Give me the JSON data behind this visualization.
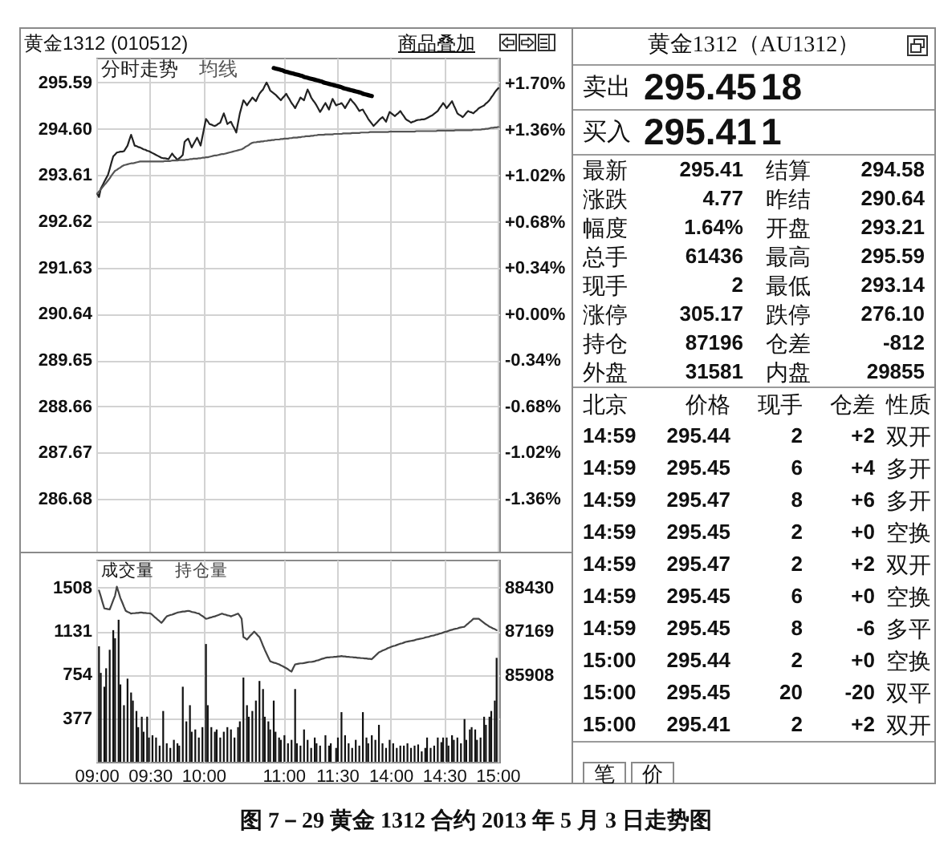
{
  "chart_data": [
    {
      "type": "line",
      "title": "黄金1312 (010512)",
      "annotations": [
        "商品叠加",
        "图 7－29 黄金 1312 合约 2013 年 5 月 3 日走势图"
      ],
      "legend": "top left",
      "grid": true,
      "tick_labels": "y",
      "categories": [
        null,
        null,
        null,
        null,
        null,
        null,
        null,
        null,
        null,
        null,
        null,
        null,
        null,
        null,
        null,
        null,
        null,
        null,
        null,
        null,
        null,
        null,
        null,
        null,
        null,
        null,
        null,
        null,
        null,
        null,
        null,
        null,
        null,
        null,
        null,
        null,
        null,
        null,
        null,
        null,
        null,
        null,
        null,
        null,
        null,
        null,
        null,
        null,
        null,
        null,
        null,
        null,
        null,
        null,
        null,
        null,
        null,
        null,
        null,
        null,
        null,
        null,
        null,
        null,
        null,
        null,
        null,
        null,
        null,
        null,
        null,
        null,
        null,
        null,
        null,
        null,
        null,
        null,
        null,
        null,
        null,
        null,
        null,
        null,
        null,
        null,
        null,
        null,
        null,
        null,
        null,
        null,
        null,
        null,
        null,
        null,
        null,
        null,
        null,
        null,
        null,
        null,
        null,
        null,
        null,
        null,
        null,
        null,
        null,
        null,
        null,
        null,
        null,
        null,
        null,
        null,
        null,
        null,
        null,
        null,
        null,
        null,
        null,
        null,
        null,
        null,
        null,
        null,
        null,
        null,
        null,
        null,
        null,
        null,
        null,
        null,
        null,
        null,
        null,
        null,
        null,
        null,
        null,
        null,
        null,
        null,
        null,
        null,
        null,
        null,
        null,
        null,
        null,
        null,
        null,
        null,
        null,
        null,
        null,
        null,
        null,
        null,
        null,
        null,
        null,
        null,
        null,
        null,
        null,
        null,
        null,
        null,
        null,
        null,
        null,
        null,
        null,
        null,
        null,
        null,
        null,
        null,
        null,
        null,
        null,
        null,
        null,
        null,
        null,
        null,
        null,
        null,
        null,
        null,
        null,
        null,
        null,
        null,
        null,
        null,
        null,
        null,
        null,
        null,
        null,
        null,
        null,
        null,
        null,
        null,
        null,
        null,
        null,
        null,
        null,
        null,
        null,
        null,
        null,
        null,
        null,
        null,
        null,
        null,
        null,
        null
      ],
      "ylim": [
        285.55,
        296.12
      ],
      "yticks": [
        295.59,
        {
          "value": 294.6,
          "label": "294.60"
        },
        293.61,
        292.62,
        291.63,
        290.64,
        289.65,
        288.66,
        287.67,
        286.68
      ],
      "y2lim": [
        -1.75,
        1.89
      ],
      "y2ticks": [
        {
          "value": 1.7,
          "label": "+1.70%"
        },
        {
          "value": 1.36,
          "label": "+1.36%"
        },
        {
          "value": 1.02,
          "label": "+1.02%"
        },
        {
          "value": 0.68,
          "label": "+0.68%"
        },
        {
          "value": 0.34,
          "label": "+0.34%"
        },
        {
          "value": 0,
          "label": "+0.00%"
        },
        {
          "value": -0.34,
          "label": "-0.34%"
        },
        {
          "value": -0.68,
          "label": "-0.68%"
        },
        {
          "value": -1.02,
          "label": "-1.02%"
        },
        {
          "value": -1.36,
          "label": "-1.36%"
        }
      ],
      "series": [
        {
          "name": "分时走势",
          "color": "#222222",
          "values": [
            293.21,
            293.14,
            293.32,
            293.39,
            293.47,
            293.54,
            293.61,
            293.74,
            293.88,
            294.01,
            294.05,
            294.09,
            294.1,
            294.11,
            294.11,
            294.12,
            294.18,
            294.24,
            294.36,
            294.47,
            294.36,
            294.24,
            294.23,
            294.21,
            294.2,
            294.18,
            294.16,
            294.15,
            294.13,
            294.12,
            294.1,
            294.08,
            294.06,
            294.04,
            294.02,
            294.0,
            293.98,
            293.97,
            293.97,
            293.96,
            293.95,
            294.01,
            294.07,
            294.02,
            293.98,
            293.93,
            293.97,
            294.0,
            294.04,
            294.32,
            294.36,
            294.39,
            294.3,
            294.2,
            294.27,
            294.34,
            294.41,
            294.33,
            294.24,
            294.43,
            294.62,
            294.81,
            294.76,
            294.7,
            294.69,
            294.67,
            294.66,
            294.68,
            294.71,
            294.73,
            294.83,
            294.93,
            294.82,
            294.7,
            294.73,
            294.75,
            294.67,
            294.6,
            294.52,
            294.73,
            294.93,
            295.07,
            295.21,
            295.16,
            295.1,
            295.16,
            295.21,
            295.27,
            295.23,
            295.19,
            295.27,
            295.35,
            295.4,
            295.44,
            295.52,
            295.59,
            295.51,
            295.42,
            295.39,
            295.36,
            295.33,
            295.29,
            295.25,
            295.21,
            295.26,
            295.3,
            295.35,
            295.28,
            295.22,
            295.15,
            295.1,
            295.04,
            295.12,
            295.19,
            295.27,
            295.24,
            295.21,
            295.33,
            295.44,
            295.36,
            295.27,
            295.21,
            295.16,
            295.1,
            295.03,
            294.96,
            295.02,
            295.09,
            295.15,
            295.08,
            295.01,
            295.13,
            295.24,
            295.17,
            295.1,
            295.12,
            295.13,
            295.15,
            295.1,
            295.04,
            295.11,
            295.17,
            295.24,
            295.19,
            295.15,
            295.1,
            295.04,
            294.98,
            295.0,
            295.01,
            294.94,
            294.88,
            294.81,
            294.76,
            294.71,
            294.66,
            294.7,
            294.74,
            294.78,
            294.82,
            294.85,
            294.8,
            294.75,
            294.86,
            294.96,
            294.93,
            294.9,
            294.87,
            294.91,
            294.94,
            294.98,
            294.92,
            294.87,
            294.81,
            294.78,
            294.76,
            294.73,
            294.75,
            294.76,
            294.78,
            294.79,
            294.79,
            294.8,
            294.8,
            294.81,
            294.83,
            294.85,
            294.87,
            294.89,
            294.92,
            294.95,
            294.98,
            295.04,
            295.09,
            295.15,
            295.1,
            295.04,
            295.09,
            295.14,
            295.19,
            295.1,
            295.02,
            294.93,
            294.9,
            294.88,
            294.85,
            294.89,
            294.94,
            294.98,
            294.96,
            294.95,
            294.93,
            294.97,
            295.0,
            295.04,
            295.06,
            295.08,
            295.1,
            295.14,
            295.17,
            295.21,
            295.27,
            295.32,
            295.38,
            295.43,
            295.47
          ]
        },
        {
          "name": "均线",
          "color": "#555555",
          "values": [
            293.21,
            293.26,
            293.3,
            293.35,
            293.4,
            293.44,
            293.49,
            293.54,
            293.6,
            293.65,
            293.7,
            293.72,
            293.75,
            293.77,
            293.8,
            293.82,
            293.83,
            293.84,
            293.85,
            293.86,
            293.86,
            293.87,
            293.88,
            293.89,
            293.9,
            293.9,
            293.9,
            293.9,
            293.9,
            293.9,
            293.9,
            293.9,
            293.9,
            293.9,
            293.9,
            293.9,
            293.9,
            293.9,
            293.91,
            293.91,
            293.91,
            293.91,
            293.92,
            293.92,
            293.92,
            293.92,
            293.93,
            293.93,
            293.93,
            293.93,
            293.94,
            293.94,
            293.95,
            293.95,
            293.96,
            293.96,
            293.96,
            293.97,
            293.97,
            293.98,
            293.98,
            293.99,
            293.99,
            294.0,
            294.01,
            294.02,
            294.03,
            294.03,
            294.04,
            294.05,
            294.06,
            294.06,
            294.07,
            294.08,
            294.09,
            294.1,
            294.11,
            294.12,
            294.13,
            294.14,
            294.15,
            294.16,
            294.18,
            294.21,
            294.23,
            294.25,
            294.28,
            294.3,
            294.31,
            294.31,
            294.32,
            294.32,
            294.33,
            294.33,
            294.34,
            294.34,
            294.35,
            294.35,
            294.36,
            294.36,
            294.37,
            294.37,
            294.37,
            294.38,
            294.38,
            294.39,
            294.39,
            294.39,
            294.4,
            294.4,
            294.41,
            294.41,
            294.41,
            294.42,
            294.42,
            294.43,
            294.43,
            294.44,
            294.44,
            294.44,
            294.45,
            294.45,
            294.46,
            294.46,
            294.47,
            294.47,
            294.47,
            294.47,
            294.48,
            294.48,
            294.48,
            294.48,
            294.48,
            294.49,
            294.49,
            294.49,
            294.49,
            294.49,
            294.5,
            294.5,
            294.5,
            294.5,
            294.5,
            294.51,
            294.51,
            294.51,
            294.51,
            294.51,
            294.52,
            294.52,
            294.52,
            294.52,
            294.52,
            294.53,
            294.53,
            294.53,
            294.53,
            294.53,
            294.53,
            294.53,
            294.53,
            294.53,
            294.53,
            294.53,
            294.54,
            294.54,
            294.54,
            294.54,
            294.54,
            294.54,
            294.54,
            294.54,
            294.54,
            294.54,
            294.54,
            294.54,
            294.54,
            294.54,
            294.54,
            294.55,
            294.55,
            294.55,
            294.55,
            294.55,
            294.55,
            294.55,
            294.55,
            294.55,
            294.55,
            294.55,
            294.55,
            294.56,
            294.56,
            294.56,
            294.56,
            294.56,
            294.56,
            294.56,
            294.56,
            294.56,
            294.56,
            294.57,
            294.57,
            294.57,
            294.57,
            294.57,
            294.57,
            294.57,
            294.57,
            294.57,
            294.57,
            294.58,
            294.58,
            294.58,
            294.58,
            294.58,
            294.59,
            294.59,
            294.6,
            294.6,
            294.61,
            294.62,
            294.62,
            294.63,
            294.63,
            294.64
          ]
        },
        {
          "color": "#000000",
          "values": [
            null,
            null,
            null,
            null,
            null,
            null,
            null,
            null,
            null,
            null,
            null,
            null,
            null,
            null,
            null,
            null,
            null,
            null,
            null,
            null,
            null,
            null,
            null,
            null,
            null,
            null,
            null,
            null,
            null,
            null,
            null,
            null,
            null,
            null,
            null,
            null,
            null,
            null,
            null,
            null,
            null,
            null,
            null,
            null,
            null,
            null,
            null,
            null,
            null,
            null,
            null,
            null,
            null,
            null,
            null,
            null,
            null,
            null,
            null,
            null,
            null,
            null,
            null,
            null,
            null,
            null,
            null,
            null,
            null,
            null,
            null,
            null,
            null,
            null,
            null,
            null,
            null,
            null,
            null,
            null,
            null,
            null,
            null,
            null,
            null,
            null,
            null,
            null,
            null,
            null,
            null,
            null,
            null,
            null,
            null,
            null,
            null,
            null,
            null,
            295.9,
            295.89,
            295.88,
            295.87,
            295.86,
            295.85,
            295.83,
            295.82,
            295.81,
            295.8,
            295.79,
            295.78,
            295.77,
            295.76,
            295.75,
            295.74,
            295.73,
            295.71,
            295.7,
            295.69,
            295.68,
            295.67,
            295.66,
            295.65,
            295.64,
            295.63,
            295.62,
            295.61,
            295.59,
            295.58,
            295.57,
            295.56,
            295.55,
            295.54,
            295.53,
            295.52,
            295.51,
            295.5,
            295.49,
            295.47,
            295.46,
            295.45,
            295.44,
            295.43,
            295.42,
            295.41,
            295.4,
            295.39,
            295.38,
            295.37,
            295.35,
            295.34,
            295.33,
            295.32,
            295.31,
            295.3,
            null,
            null,
            null,
            null,
            null,
            null,
            null,
            null,
            null,
            null,
            null,
            null,
            null,
            null,
            null,
            null,
            null,
            null,
            null,
            null,
            null,
            null,
            null,
            null,
            null,
            null,
            null,
            null,
            null,
            null,
            null,
            null,
            null,
            null,
            null,
            null,
            null,
            null,
            null,
            null,
            null,
            null,
            null,
            null,
            null,
            null,
            null,
            null,
            null,
            null,
            null,
            null,
            null,
            null,
            null,
            null,
            null,
            null,
            null,
            null,
            null,
            null,
            null,
            null,
            null,
            null,
            null,
            null,
            null,
            null,
            null
          ]
        }
      ]
    },
    {
      "type": "bar",
      "legend": "top left",
      "grid": true,
      "categories": [
        "09:00",
        null,
        null,
        null,
        null,
        null,
        null,
        null,
        null,
        null,
        null,
        null,
        null,
        null,
        null,
        null,
        null,
        null,
        null,
        null,
        null,
        null,
        null,
        null,
        null,
        null,
        null,
        null,
        null,
        null,
        "09:30",
        null,
        null,
        null,
        null,
        null,
        null,
        null,
        null,
        null,
        null,
        null,
        null,
        null,
        null,
        null,
        null,
        null,
        null,
        null,
        null,
        null,
        null,
        null,
        null,
        null,
        null,
        null,
        null,
        null,
        "10:00",
        null,
        null,
        null,
        null,
        null,
        null,
        null,
        null,
        null,
        null,
        null,
        null,
        null,
        null,
        null,
        null,
        null,
        null,
        null,
        null,
        null,
        null,
        null,
        null,
        null,
        null,
        null,
        null,
        null,
        null,
        null,
        null,
        null,
        null,
        null,
        null,
        null,
        null,
        null,
        null,
        null,
        null,
        null,
        null,
        "11:00",
        null,
        null,
        null,
        null,
        null,
        null,
        null,
        null,
        null,
        null,
        null,
        null,
        null,
        null,
        null,
        null,
        null,
        null,
        null,
        null,
        null,
        null,
        null,
        null,
        null,
        null,
        null,
        null,
        null,
        "11:30",
        null,
        null,
        null,
        null,
        null,
        null,
        null,
        null,
        null,
        null,
        null,
        null,
        null,
        null,
        null,
        null,
        null,
        null,
        null,
        null,
        null,
        null,
        null,
        null,
        null,
        null,
        null,
        null,
        null,
        "14:00",
        null,
        null,
        null,
        null,
        null,
        null,
        null,
        null,
        null,
        null,
        null,
        null,
        null,
        null,
        null,
        null,
        null,
        null,
        null,
        null,
        null,
        null,
        null,
        null,
        null,
        null,
        null,
        null,
        null,
        "14:30",
        null,
        null,
        null,
        null,
        null,
        null,
        null,
        null,
        null,
        null,
        null,
        null,
        null,
        null,
        null,
        null,
        null,
        null,
        null,
        null,
        null,
        null,
        null,
        null,
        null,
        null,
        null,
        null,
        null,
        "15:00"
      ],
      "ylim": [
        0,
        1750
      ],
      "yticks": [
        1508,
        1131,
        754,
        377
      ],
      "y2lim": [
        83390,
        89240
      ],
      "y2ticks": [
        88430,
        87169,
        85908
      ],
      "series": [
        {
          "name": "成交量",
          "color": "#111111",
          "values": [
            null,
            1000,
            770,
            null,
            650,
            810,
            null,
            970,
            null,
            1140,
            1070,
            null,
            1230,
            670,
            null,
            490,
            null,
            720,
            null,
            600,
            530,
            null,
            440,
            300,
            null,
            390,
            260,
            null,
            390,
            210,
            null,
            230,
            null,
            210,
            null,
            140,
            null,
            440,
            null,
            160,
            null,
            120,
            null,
            190,
            null,
            160,
            140,
            null,
            650,
            null,
            350,
            null,
            490,
            260,
            null,
            280,
            null,
            210,
            null,
            300,
            null,
            1020,
            490,
            null,
            300,
            null,
            260,
            280,
            null,
            210,
            null,
            260,
            null,
            300,
            null,
            280,
            null,
            210,
            null,
            300,
            350,
            null,
            730,
            null,
            490,
            390,
            null,
            440,
            null,
            530,
            null,
            700,
            null,
            630,
            390,
            null,
            350,
            280,
            null,
            530,
            260,
            null,
            210,
            190,
            null,
            230,
            null,
            160,
            null,
            190,
            null,
            630,
            160,
            null,
            140,
            null,
            280,
            null,
            190,
            null,
            120,
            null,
            210,
            160,
            null,
            140,
            null,
            null,
            230,
            null,
            140,
            160,
            null,
            null,
            120,
            210,
            null,
            430,
            null,
            230,
            null,
            160,
            null,
            120,
            null,
            190,
            null,
            140,
            null,
            430,
            null,
            210,
            160,
            null,
            230,
            null,
            190,
            null,
            320,
            null,
            160,
            null,
            120,
            null,
            190,
            null,
            160,
            null,
            120,
            null,
            140,
            null,
            140,
            null,
            160,
            null,
            120,
            null,
            140,
            null,
            150,
            null,
            90,
            null,
            120,
            210,
            null,
            120,
            null,
            140,
            null,
            210,
            null,
            170,
            210,
            null,
            210,
            140,
            null,
            230,
            190,
            null,
            210,
            null,
            160,
            null,
            370,
            190,
            null,
            280,
            300,
            null,
            280,
            190,
            null,
            210,
            null,
            390,
            320,
            null,
            390,
            440,
            null,
            530,
            900,
            null
          ]
        },
        {
          "name": "持仓量",
          "type": "line",
          "axis": "y2",
          "color": "#444444",
          "values": [
            null,
            88350,
            88180,
            88000,
            87830,
            87820,
            87810,
            87800,
            87930,
            88070,
            88200,
            88460,
            88300,
            88130,
            88010,
            87880,
            87760,
            87730,
            87710,
            87680,
            87690,
            87690,
            87700,
            87700,
            87710,
            87710,
            87700,
            87700,
            87690,
            87690,
            87680,
            87640,
            87590,
            87550,
            87500,
            87460,
            87410,
            87470,
            87540,
            87600,
            87620,
            87640,
            87650,
            87670,
            87690,
            87710,
            87720,
            87730,
            87740,
            87740,
            87750,
            87760,
            87750,
            87730,
            87720,
            87710,
            87690,
            87680,
            87640,
            87610,
            87570,
            87530,
            87540,
            87560,
            87570,
            87590,
            87600,
            87620,
            87640,
            87660,
            87680,
            87660,
            87650,
            87630,
            87620,
            87600,
            87620,
            87640,
            87660,
            87680,
            87610,
            87530,
            87000,
            86970,
            86930,
            86990,
            87050,
            87100,
            87160,
            87110,
            87050,
            87000,
            86880,
            86750,
            86630,
            86520,
            86410,
            86300,
            86280,
            86260,
            86250,
            86230,
            86210,
            86180,
            86160,
            86130,
            86100,
            86070,
            86030,
            86000,
            86110,
            86210,
            86220,
            86230,
            86240,
            86240,
            86250,
            86260,
            86270,
            86280,
            86280,
            86290,
            86300,
            86320,
            86330,
            86350,
            86370,
            86380,
            86400,
            86410,
            86410,
            86420,
            86420,
            86430,
            86430,
            86440,
            86440,
            86450,
            86440,
            86440,
            86430,
            86430,
            86420,
            86420,
            86410,
            86410,
            86400,
            86400,
            86390,
            86390,
            86380,
            86380,
            86370,
            86370,
            86360,
            86410,
            86460,
            86510,
            86560,
            86580,
            86610,
            86630,
            86650,
            86680,
            86700,
            86720,
            86740,
            86750,
            86770,
            86790,
            86810,
            86820,
            86840,
            86860,
            86870,
            86880,
            86890,
            86900,
            86910,
            86930,
            86940,
            86950,
            86960,
            86970,
            86990,
            87000,
            87010,
            87030,
            87040,
            87050,
            87070,
            87080,
            87100,
            87110,
            87130,
            87150,
            87160,
            87180,
            87200,
            87210,
            87230,
            87240,
            87250,
            87270,
            87280,
            87290,
            87300,
            87350,
            87390,
            87440,
            87480,
            87530,
            87530,
            87530,
            87530,
            87490,
            87450,
            87410,
            87370,
            87340,
            87300,
            87280,
            87250,
            87230,
            87200,
            null
          ]
        }
      ]
    },
    {
      "type": "other",
      "title": "黄金1312（AU1312）",
      "annotations": [
        "卖出",
        "295.45",
        "18",
        "买入",
        "295.41",
        "1",
        "最新",
        "295.41",
        "结算",
        "294.58",
        "涨跌",
        "4.77",
        "昨结",
        "290.64",
        "幅度",
        "1.64%",
        "开盘",
        "293.21",
        "总手",
        "61436",
        "最高",
        "295.59",
        "现手",
        "2",
        "最低",
        "293.14",
        "涨停",
        "305.17",
        "跌停",
        "276.10",
        "持仓",
        "87196",
        "仓差",
        "-812",
        "外盘",
        "31581",
        "内盘",
        "29855",
        "北京",
        "价格",
        "现手",
        "仓差",
        "性质",
        "14:59",
        "295.44",
        "2",
        "+2",
        "双开",
        "14:59",
        "295.45",
        "6",
        "+4",
        "多开",
        "14:59",
        "295.47",
        "8",
        "+6",
        "多开",
        "14:59",
        "295.45",
        "2",
        "+0",
        "空换",
        "14:59",
        "295.47",
        "2",
        "+2",
        "双开",
        "14:59",
        "295.45",
        "6",
        "+0",
        "空换",
        "14:59",
        "295.45",
        "8",
        "-6",
        "多平",
        "15:00",
        "295.44",
        "2",
        "+0",
        "空换",
        "15:00",
        "295.45",
        "20",
        "-20",
        "双平",
        "15:00",
        "295.41",
        "2",
        "+2",
        "双开",
        "笔",
        "价"
      ]
    }
  ]
}
